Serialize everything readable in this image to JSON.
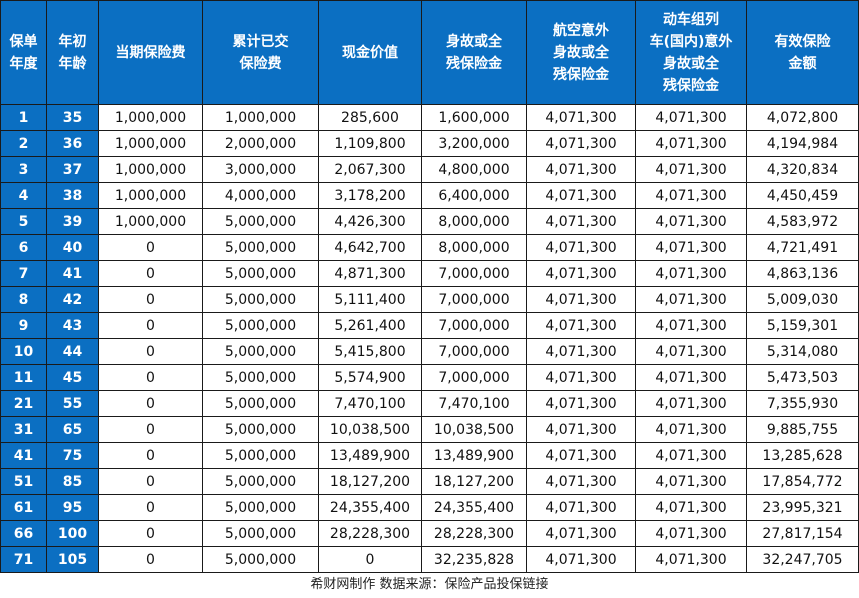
{
  "table": {
    "headers": [
      [
        "保单",
        "年度"
      ],
      [
        "年初",
        "年龄"
      ],
      [
        "当期保险费"
      ],
      [
        "累计已交",
        "保险费"
      ],
      [
        "现金价值"
      ],
      [
        "身故或全",
        "残保险金"
      ],
      [
        "航空意外",
        "身故或全",
        "残保险金"
      ],
      [
        "动车组列",
        "车(国内)意外",
        "身故或全",
        "残保险金"
      ],
      [
        "有效保险",
        "金额"
      ]
    ],
    "rows": [
      [
        "1",
        "35",
        "1,000,000",
        "1,000,000",
        "285,600",
        "1,600,000",
        "4,071,300",
        "4,071,300",
        "4,072,800"
      ],
      [
        "2",
        "36",
        "1,000,000",
        "2,000,000",
        "1,109,800",
        "3,200,000",
        "4,071,300",
        "4,071,300",
        "4,194,984"
      ],
      [
        "3",
        "37",
        "1,000,000",
        "3,000,000",
        "2,067,300",
        "4,800,000",
        "4,071,300",
        "4,071,300",
        "4,320,834"
      ],
      [
        "4",
        "38",
        "1,000,000",
        "4,000,000",
        "3,178,200",
        "6,400,000",
        "4,071,300",
        "4,071,300",
        "4,450,459"
      ],
      [
        "5",
        "39",
        "1,000,000",
        "5,000,000",
        "4,426,300",
        "8,000,000",
        "4,071,300",
        "4,071,300",
        "4,583,972"
      ],
      [
        "6",
        "40",
        "0",
        "5,000,000",
        "4,642,700",
        "8,000,000",
        "4,071,300",
        "4,071,300",
        "4,721,491"
      ],
      [
        "7",
        "41",
        "0",
        "5,000,000",
        "4,871,300",
        "7,000,000",
        "4,071,300",
        "4,071,300",
        "4,863,136"
      ],
      [
        "8",
        "42",
        "0",
        "5,000,000",
        "5,111,400",
        "7,000,000",
        "4,071,300",
        "4,071,300",
        "5,009,030"
      ],
      [
        "9",
        "43",
        "0",
        "5,000,000",
        "5,261,400",
        "7,000,000",
        "4,071,300",
        "4,071,300",
        "5,159,301"
      ],
      [
        "10",
        "44",
        "0",
        "5,000,000",
        "5,415,800",
        "7,000,000",
        "4,071,300",
        "4,071,300",
        "5,314,080"
      ],
      [
        "11",
        "45",
        "0",
        "5,000,000",
        "5,574,900",
        "7,000,000",
        "4,071,300",
        "4,071,300",
        "5,473,503"
      ],
      [
        "21",
        "55",
        "0",
        "5,000,000",
        "7,470,100",
        "7,470,100",
        "4,071,300",
        "4,071,300",
        "7,355,930"
      ],
      [
        "31",
        "65",
        "0",
        "5,000,000",
        "10,038,500",
        "10,038,500",
        "4,071,300",
        "4,071,300",
        "9,885,755"
      ],
      [
        "41",
        "75",
        "0",
        "5,000,000",
        "13,489,900",
        "13,489,900",
        "4,071,300",
        "4,071,300",
        "13,285,628"
      ],
      [
        "51",
        "85",
        "0",
        "5,000,000",
        "18,127,200",
        "18,127,200",
        "4,071,300",
        "4,071,300",
        "17,854,772"
      ],
      [
        "61",
        "95",
        "0",
        "5,000,000",
        "24,355,400",
        "24,355,400",
        "4,071,300",
        "4,071,300",
        "23,995,321"
      ],
      [
        "66",
        "100",
        "0",
        "5,000,000",
        "28,228,300",
        "28,228,300",
        "4,071,300",
        "4,071,300",
        "27,817,154"
      ],
      [
        "71",
        "105",
        "0",
        "5,000,000",
        "0",
        "32,235,828",
        "4,071,300",
        "4,071,300",
        "32,247,705"
      ]
    ]
  },
  "footer": "希财网制作  数据来源：保险产品投保链接",
  "colors": {
    "header_bg": "#0b6fc2",
    "header_text": "#ffffff",
    "grid": "#1a1a1a"
  }
}
